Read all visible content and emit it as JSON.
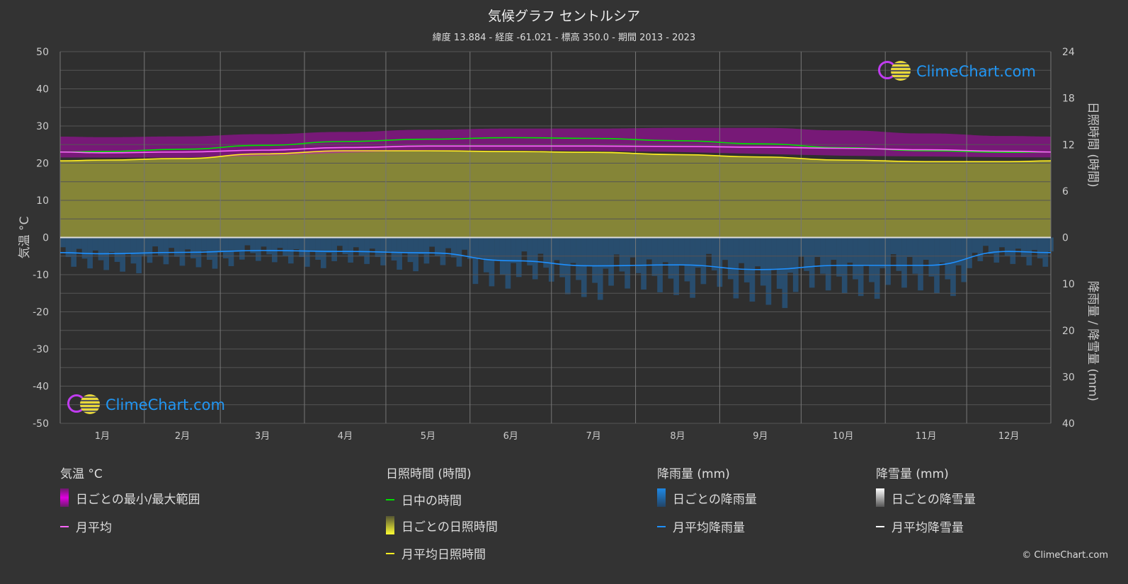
{
  "header": {
    "title": "気候グラフ セントルシア",
    "subtitle": "緯度 13.884 - 経度 -61.021 - 標高 350.0 - 期間 2013 - 2023"
  },
  "logo_text": "ClimeChart.com",
  "copyright": "© ClimeChart.com",
  "colors": {
    "background": "#333333",
    "temp_range": "#d000d0",
    "temp_mean": "#ff66ff",
    "daylight": "#00e000",
    "sunshine_fill": "#8a8a38",
    "sunshine_mean": "#ffee22",
    "rain": "#1e88e5",
    "rain_mean": "#1e90ff",
    "snow_mean": "#ffffff"
  },
  "legend": {
    "temp": {
      "title": "気温 °C",
      "items": [
        "日ごとの最小/最大範囲",
        "月平均"
      ]
    },
    "sun": {
      "title": "日照時間 (時間)",
      "items": [
        "日中の時間",
        "日ごとの日照時間",
        "月平均日照時間"
      ]
    },
    "rain": {
      "title": "降雨量 (mm)",
      "items": [
        "日ごとの降雨量",
        "月平均降雨量"
      ]
    },
    "snow": {
      "title": "降雪量 (mm)",
      "items": [
        "日ごとの降雪量",
        "月平均降雪量"
      ]
    }
  },
  "chart_data": {
    "type": "line",
    "categories": [
      "1月",
      "2月",
      "3月",
      "4月",
      "5月",
      "6月",
      "7月",
      "8月",
      "9月",
      "10月",
      "11月",
      "12月"
    ],
    "left_axis": {
      "label": "気温 °C",
      "range": [
        -50,
        50
      ],
      "ticks": [
        "50",
        "40",
        "30",
        "20",
        "10",
        "0",
        "-10",
        "-20",
        "-30",
        "-40",
        "-50"
      ]
    },
    "right_axis_top": {
      "label": "日照時間 (時間)",
      "range": [
        0,
        24
      ],
      "ticks": [
        "24",
        "18",
        "12",
        "6",
        "0"
      ]
    },
    "right_axis_bottom": {
      "label": "降雨量 / 降雪量 (mm)",
      "range": [
        0,
        40
      ],
      "ticks": [
        "0",
        "10",
        "20",
        "30",
        "40"
      ]
    },
    "grid": true,
    "series": [
      {
        "name": "月平均",
        "axis": "temp",
        "values": [
          22.8,
          23.0,
          23.5,
          24.2,
          24.6,
          24.6,
          24.6,
          24.5,
          24.3,
          24.0,
          23.6,
          23.2
        ]
      },
      {
        "name": "日ごとの最小/最大範囲 (max)",
        "axis": "temp",
        "values": [
          27.0,
          27.2,
          27.8,
          28.4,
          29.0,
          29.3,
          29.3,
          29.5,
          29.5,
          28.8,
          28.0,
          27.3
        ]
      },
      {
        "name": "日ごとの最小/最大範囲 (min)",
        "axis": "temp",
        "values": [
          21.5,
          21.5,
          22.0,
          22.8,
          23.5,
          23.5,
          23.3,
          23.0,
          22.5,
          22.0,
          21.8,
          21.6
        ]
      },
      {
        "name": "日中の時間",
        "axis": "sun",
        "values": [
          11.1,
          11.4,
          11.9,
          12.4,
          12.7,
          12.9,
          12.8,
          12.5,
          12.1,
          11.6,
          11.2,
          11.0
        ]
      },
      {
        "name": "月平均日照時間",
        "axis": "sun",
        "values": [
          10.0,
          10.2,
          10.8,
          11.2,
          11.2,
          11.1,
          11.0,
          10.7,
          10.4,
          10.0,
          9.8,
          9.8
        ]
      },
      {
        "name": "月平均降雨量",
        "axis": "rain",
        "values": [
          3.5,
          3.2,
          2.8,
          3.0,
          3.3,
          5.0,
          6.1,
          5.9,
          6.9,
          6.0,
          6.0,
          3.0
        ]
      },
      {
        "name": "月平均降雪量",
        "axis": "rain",
        "values": [
          0,
          0,
          0,
          0,
          0,
          0,
          0,
          0,
          0,
          0,
          0,
          0
        ]
      }
    ]
  }
}
